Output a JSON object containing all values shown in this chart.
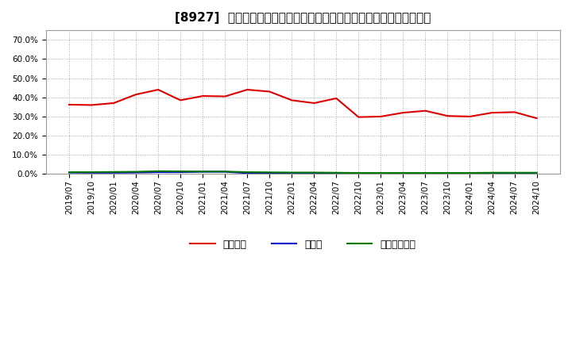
{
  "title": "[8927]  自己資本、のれん、繰延税金資産の総資産に対する比率の推移",
  "x_labels": [
    "2019/07",
    "2019/10",
    "2020/01",
    "2020/04",
    "2020/07",
    "2020/10",
    "2021/01",
    "2021/04",
    "2021/07",
    "2021/10",
    "2022/01",
    "2022/04",
    "2022/07",
    "2022/10",
    "2023/01",
    "2023/04",
    "2023/07",
    "2023/10",
    "2024/01",
    "2024/04",
    "2024/07",
    "2024/10"
  ],
  "equity_ratio": [
    0.362,
    0.36,
    0.37,
    0.415,
    0.44,
    0.385,
    0.407,
    0.405,
    0.44,
    0.43,
    0.385,
    0.37,
    0.395,
    0.297,
    0.3,
    0.32,
    0.33,
    0.303,
    0.3,
    0.32,
    0.323,
    0.291
  ],
  "noren_ratio": [
    0.008,
    0.007,
    0.007,
    0.008,
    0.01,
    0.01,
    0.012,
    0.012,
    0.005,
    0.002,
    0.002,
    0.002,
    0.002,
    0.002,
    0.002,
    0.002,
    0.002,
    0.002,
    0.002,
    0.002,
    0.002,
    0.002
  ],
  "deferred_tax_ratio": [
    0.01,
    0.01,
    0.011,
    0.012,
    0.015,
    0.014,
    0.013,
    0.013,
    0.01,
    0.009,
    0.008,
    0.008,
    0.007,
    0.006,
    0.006,
    0.006,
    0.006,
    0.006,
    0.006,
    0.007,
    0.007,
    0.007
  ],
  "equity_color": "#dd0000",
  "noren_color": "#0000cc",
  "deferred_tax_color": "#007700",
  "bg_color": "#ffffff",
  "plot_bg_color": "#ffffff",
  "grid_color": "#aaaaaa",
  "ylim": [
    0.0,
    0.75
  ],
  "yticks": [
    0.0,
    0.1,
    0.2,
    0.3,
    0.4,
    0.5,
    0.6,
    0.7
  ],
  "legend_labels": [
    "自己資本",
    "のれん",
    "繰延税金資産"
  ],
  "title_fontsize": 11,
  "tick_fontsize": 7.5,
  "legend_fontsize": 9
}
